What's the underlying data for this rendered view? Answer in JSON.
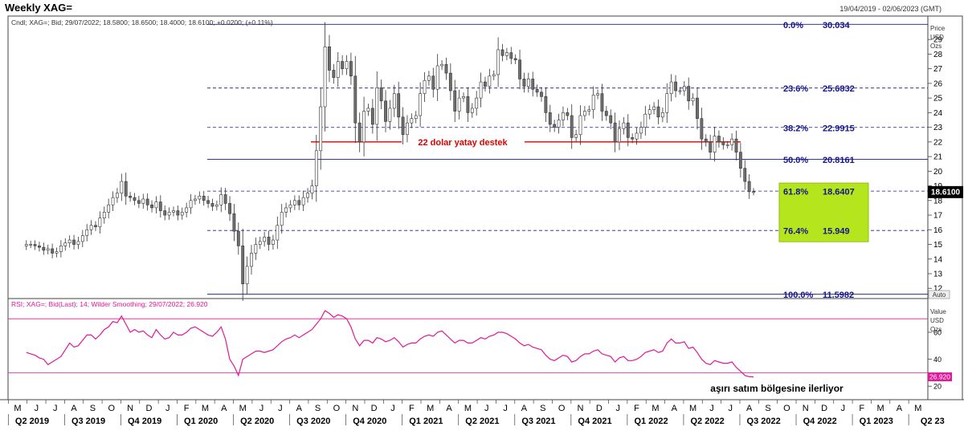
{
  "header": {
    "title": "Weekly XAG=",
    "date_range": "19/04/2019 - 02/06/2023 (GMT)"
  },
  "price_panel": {
    "legend": "Cndl; XAG=; Bid; 29/07/2022; 18.5800; 18.6500; 18.4000; 18.6100; +0.0200; (+0.11%)",
    "axis_title": [
      "Price",
      "USD",
      "Ozs"
    ],
    "last_price_label": "18.6100",
    "auto_label": "Auto",
    "support_label": "22 dolar yatay destek"
  },
  "rsi_panel": {
    "legend": "RSI; XAG=; Bid(Last); 14; Wilder Smoothing; 29/07/2022; 26.920",
    "axis_title": [
      "Value",
      "USD",
      "Ozs"
    ],
    "last_value_label": "26.920",
    "annotation": "aşırı satım bölgesine ilerliyor"
  },
  "colors": {
    "up_candle": "#ffffff",
    "down_candle": "#6e6e6e",
    "fib_line": "#1a1a8c",
    "fib_text": "#14148c",
    "support_line": "#e00000",
    "rsi_line": "#e0189a",
    "highlight_box": "#b5e61d",
    "last_price_bg": "#000000"
  },
  "x_axis": {
    "months": [
      "M",
      "J",
      "J",
      "A",
      "S",
      "O",
      "N",
      "D",
      "J",
      "F",
      "M",
      "A",
      "M",
      "J",
      "J",
      "A",
      "S",
      "O",
      "N",
      "D",
      "J",
      "F",
      "M",
      "A",
      "M",
      "J",
      "J",
      "A",
      "S",
      "O",
      "N",
      "D",
      "J",
      "F",
      "M",
      "A",
      "M",
      "J",
      "J",
      "A",
      "S",
      "O",
      "N",
      "D",
      "J",
      "F",
      "M",
      "A",
      "M",
      "J"
    ],
    "quarters": [
      "Q2 2019",
      "Q3 2019",
      "Q4 2019",
      "Q1 2020",
      "Q2 2020",
      "Q3 2020",
      "Q4 2020",
      "Q1 2021",
      "Q2 2021",
      "Q3 2021",
      "Q4 2021",
      "Q1 2022",
      "Q2 2022",
      "Q3 2022",
      "Q4 2022",
      "Q1 2023",
      "Q2 23"
    ]
  },
  "chart_data": [
    {
      "type": "candlestick",
      "title": "Weekly XAG=",
      "ylabel": "Price USD Ozs",
      "ylim": [
        11.3,
        30.6
      ],
      "yticks": [
        12,
        13,
        14,
        15,
        16,
        17,
        18,
        19,
        20,
        21,
        22,
        23,
        24,
        25,
        26,
        27,
        28,
        29
      ],
      "fibonacci_levels": [
        {
          "label": "0.0%",
          "value": 30.034
        },
        {
          "label": "23.6%",
          "value": 25.6832
        },
        {
          "label": "38.2%",
          "value": 22.9915
        },
        {
          "label": "50.0%",
          "value": 20.8161
        },
        {
          "label": "61.8%",
          "value": 18.6407
        },
        {
          "label": "76.4%",
          "value": 15.949
        },
        {
          "label": "100.0%",
          "value": 11.5982
        }
      ],
      "horizontal_support": 22.0,
      "weekly_closes": [
        15.0,
        15.0,
        14.9,
        14.8,
        14.6,
        14.7,
        14.4,
        14.5,
        14.9,
        15.1,
        15.3,
        15.0,
        15.2,
        15.6,
        16.0,
        16.3,
        16.2,
        16.8,
        17.2,
        17.7,
        18.2,
        18.5,
        19.3,
        18.3,
        18.2,
        18.0,
        17.8,
        18.1,
        17.7,
        17.5,
        17.9,
        17.3,
        17.0,
        17.2,
        17.3,
        17.0,
        17.2,
        17.5,
        18.0,
        18.1,
        18.3,
        18.0,
        17.8,
        17.6,
        17.7,
        18.4,
        17.8,
        17.1,
        15.9,
        14.9,
        12.3,
        13.5,
        14.4,
        15.0,
        15.2,
        15.5,
        15.0,
        15.3,
        16.3,
        17.2,
        17.5,
        17.7,
        18.0,
        17.7,
        18.2,
        18.5,
        19.0,
        21.4,
        24.4,
        28.5,
        26.9,
        26.4,
        27.5,
        27.0,
        27.5,
        26.5,
        23.3,
        22.0,
        24.1,
        24.3,
        23.2,
        25.7,
        24.8,
        23.4,
        24.3,
        25.3,
        23.7,
        22.5,
        23.3,
        23.6,
        23.8,
        25.3,
        26.2,
        26.5,
        25.6,
        27.2,
        27.3,
        26.7,
        25.5,
        24.1,
        25.0,
        25.1,
        24.0,
        24.3,
        25.0,
        26.1,
        25.8,
        26.5,
        26.6,
        28.3,
        27.9,
        28.1,
        27.7,
        27.6,
        26.3,
        25.8,
        26.3,
        25.6,
        25.4,
        25.1,
        24.0,
        23.2,
        23.0,
        23.5,
        24.0,
        23.8,
        22.3,
        22.5,
        23.8,
        24.1,
        24.2,
        25.2,
        25.3,
        24.1,
        23.8,
        23.3,
        22.0,
        22.9,
        23.3,
        22.3,
        22.2,
        22.6,
        23.0,
        23.9,
        24.2,
        24.4,
        23.7,
        24.0,
        25.3,
        26.1,
        25.5,
        25.5,
        25.8,
        24.8,
        25.0,
        23.6,
        22.2,
        22.0,
        21.3,
        22.4,
        22.0,
        21.8,
        21.8,
        22.2,
        21.3,
        20.2,
        19.3,
        18.6,
        18.6
      ],
      "rsi": {
        "name": "RSI 14",
        "ylim": [
          10,
          85
        ],
        "yticks": [
          20,
          40,
          60
        ],
        "overbought": 70,
        "oversold": 30,
        "last_value": 26.92,
        "values": [
          45,
          44,
          43,
          41,
          40,
          36,
          38,
          40,
          42,
          47,
          52,
          49,
          50,
          54,
          58,
          58,
          55,
          58,
          62,
          64,
          68,
          67,
          72,
          66,
          60,
          62,
          60,
          61,
          58,
          56,
          62,
          58,
          55,
          56,
          60,
          58,
          58,
          60,
          63,
          64,
          62,
          60,
          58,
          57,
          60,
          64,
          55,
          40,
          35,
          28,
          40,
          42,
          44,
          46,
          46,
          45,
          46,
          47,
          50,
          53,
          55,
          56,
          58,
          56,
          58,
          60,
          62,
          66,
          70,
          76,
          74,
          71,
          73,
          72,
          70,
          64,
          55,
          50,
          54,
          54,
          52,
          56,
          55,
          53,
          54,
          56,
          53,
          49,
          51,
          52,
          52,
          55,
          57,
          58,
          57,
          60,
          61,
          58,
          55,
          52,
          54,
          54,
          52,
          52,
          54,
          56,
          55,
          57,
          58,
          60,
          60,
          59,
          57,
          55,
          52,
          50,
          51,
          49,
          48,
          47,
          43,
          40,
          39,
          41,
          43,
          42,
          38,
          39,
          42,
          44,
          44,
          46,
          47,
          44,
          43,
          42,
          38,
          41,
          42,
          39,
          39,
          40,
          42,
          45,
          46,
          47,
          45,
          46,
          52,
          55,
          52,
          52,
          53,
          48,
          49,
          45,
          40,
          37,
          36,
          39,
          38,
          37,
          37,
          38,
          34,
          31,
          28,
          27,
          26.92
        ]
      }
    }
  ]
}
